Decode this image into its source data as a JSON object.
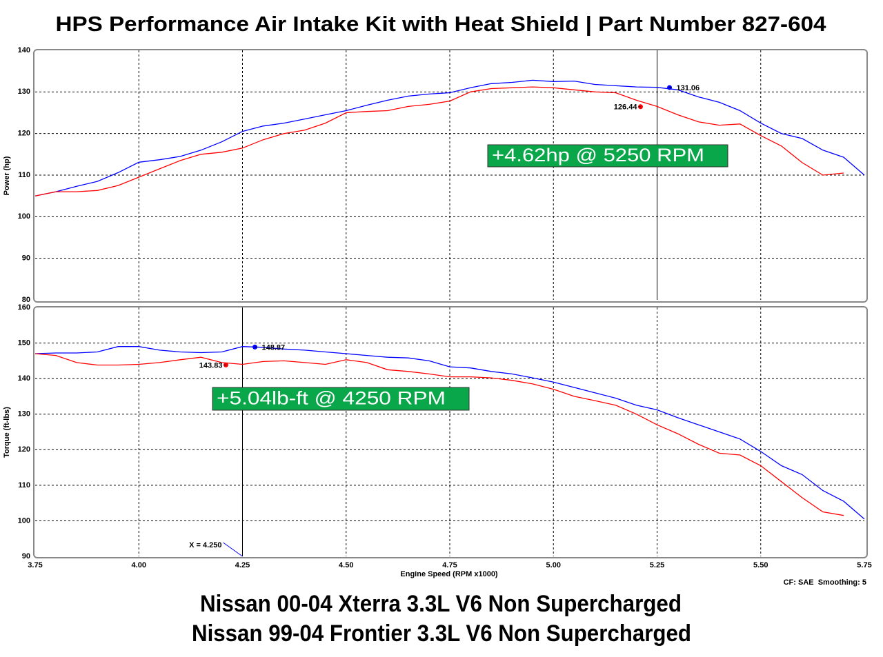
{
  "title": "HPS Performance Air Intake Kit with Heat Shield | Part Number 827-604",
  "footer": [
    "Nissan 00-04 Xterra 3.3L V6 Non Supercharged",
    "Nissan 99-04 Frontier 3.3L V6 Non Supercharged"
  ],
  "chart_data": [
    {
      "type": "line",
      "y_label": "Power (hp)",
      "ylim": [
        80,
        140
      ],
      "yticks": [
        80,
        90,
        100,
        110,
        120,
        130,
        140
      ],
      "grid": true,
      "x": [
        3.75,
        3.8,
        3.85,
        3.9,
        3.95,
        4.0,
        4.05,
        4.1,
        4.15,
        4.2,
        4.25,
        4.3,
        4.35,
        4.4,
        4.45,
        4.5,
        4.55,
        4.6,
        4.65,
        4.7,
        4.75,
        4.8,
        4.85,
        4.9,
        4.95,
        5.0,
        5.05,
        5.1,
        5.15,
        5.2,
        5.25,
        5.3,
        5.35,
        5.4,
        5.45,
        5.5,
        5.55,
        5.6,
        5.65,
        5.7,
        5.75
      ],
      "series": [
        {
          "color": "#0000ff",
          "values": [
            105,
            106,
            107.3,
            108.5,
            110.6,
            113.1,
            113.7,
            114.5,
            116,
            118,
            120.5,
            121.8,
            122.5,
            123.5,
            124.5,
            125.5,
            126.8,
            128,
            129,
            129.5,
            129.8,
            131,
            132,
            132.3,
            132.8,
            132.5,
            132.6,
            131.8,
            131.5,
            131.2,
            131.1,
            130.5,
            128.8,
            127.5,
            125.5,
            122.5,
            120,
            118.8,
            116,
            114.3,
            110
          ]
        },
        {
          "color": "#ff0000",
          "values": [
            105,
            106,
            106,
            106.3,
            107.5,
            109.5,
            111.5,
            113.5,
            115,
            115.5,
            116.5,
            118.5,
            120,
            120.8,
            122.5,
            125,
            125.3,
            125.5,
            126.5,
            127,
            127.8,
            130,
            130.8,
            131,
            131.2,
            131,
            130.5,
            130,
            129.8,
            128,
            126.5,
            124.5,
            122.8,
            122,
            122.3,
            119.5,
            117,
            113,
            110,
            110.5,
            null
          ]
        }
      ],
      "cursor": 5.25,
      "points": [
        {
          "x": 5.28,
          "y": 131.06,
          "color": "#0000ff"
        },
        {
          "x": 5.21,
          "y": 126.44,
          "color": "#ff0000"
        }
      ],
      "annotation": "+4.62hp @ 5250 RPM"
    },
    {
      "type": "line",
      "y_label": "Torque (ft-lbs)",
      "x_label": "Engine Speed (RPM x1000)",
      "ylim": [
        90,
        160
      ],
      "yticks": [
        90,
        100,
        110,
        120,
        130,
        140,
        150,
        160
      ],
      "grid": true,
      "xlim": [
        3.75,
        5.75
      ],
      "xticks": [
        3.75,
        {
          "value": 4,
          "label": "4.00"
        },
        4.25,
        {
          "value": 4.5,
          "label": "4.50"
        },
        4.75,
        {
          "value": 5,
          "label": "5.00"
        },
        5.25,
        {
          "value": 5.5,
          "label": "5.50"
        },
        5.75
      ],
      "x": [
        3.75,
        3.8,
        3.85,
        3.9,
        3.95,
        4.0,
        4.05,
        4.1,
        4.15,
        4.2,
        4.25,
        4.3,
        4.35,
        4.4,
        4.45,
        4.5,
        4.55,
        4.6,
        4.65,
        4.7,
        4.75,
        4.8,
        4.85,
        4.9,
        4.95,
        5.0,
        5.05,
        5.1,
        5.15,
        5.2,
        5.25,
        5.3,
        5.35,
        5.4,
        5.45,
        5.5,
        5.55,
        5.6,
        5.65,
        5.7,
        5.75
      ],
      "series": [
        {
          "color": "#0000ff",
          "values": [
            147,
            147.2,
            147.2,
            147.5,
            149,
            149,
            148,
            147.5,
            147.3,
            147.5,
            149,
            148.8,
            148.3,
            148,
            147.5,
            147,
            146.5,
            146,
            145.8,
            145,
            143.3,
            143,
            142,
            141.3,
            140.2,
            139,
            137.5,
            136,
            134.5,
            132.5,
            131.2,
            129,
            127,
            125,
            123,
            119.5,
            115.5,
            113,
            108.5,
            105.5,
            100.5
          ]
        },
        {
          "color": "#ff0000",
          "values": [
            147,
            146.5,
            144.5,
            143.8,
            143.8,
            144,
            144.5,
            145.3,
            146,
            144.5,
            144,
            144.8,
            145,
            144.5,
            144,
            145.3,
            144.5,
            142.5,
            142,
            141.3,
            140.5,
            140.5,
            140.2,
            139.5,
            138.5,
            137,
            135,
            133.8,
            132.5,
            130,
            127,
            124.5,
            121.5,
            119,
            118.5,
            115.5,
            111,
            106.5,
            102.5,
            101.5,
            null
          ]
        }
      ],
      "cursor": 4.25,
      "cursor_label": "X = 4.250",
      "points": [
        {
          "x": 4.28,
          "y": 148.87,
          "color": "#0000ff"
        },
        {
          "x": 4.21,
          "y": 143.83,
          "color": "#ff0000"
        }
      ],
      "annotation": "+5.04lb-ft @ 4250 RPM",
      "note": "CF: SAE  Smoothing: 5"
    }
  ]
}
